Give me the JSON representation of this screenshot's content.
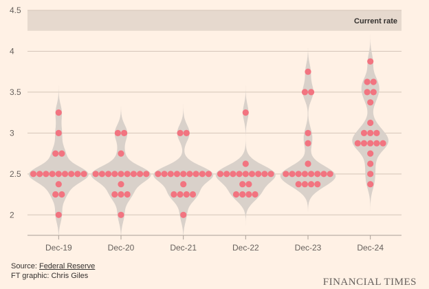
{
  "chart_data": {
    "type": "scatter",
    "subtype": "dot-plot-with-violin",
    "categories": [
      "Dec-19",
      "Dec-20",
      "Dec-21",
      "Dec-22",
      "Dec-23",
      "Dec-24"
    ],
    "ylim": [
      1.75,
      4.5
    ],
    "yticks": [
      "2",
      "2.5",
      "3",
      "3.5",
      "4",
      "4.5"
    ],
    "ytick_values": [
      2,
      2.5,
      3,
      3.5,
      4,
      4.5
    ],
    "band": {
      "from": 4.25,
      "to": 4.5,
      "label": "Current rate"
    },
    "dots": [
      [
        2.0,
        2.25,
        2.25,
        2.375,
        2.5,
        2.5,
        2.5,
        2.5,
        2.5,
        2.5,
        2.5,
        2.5,
        2.5,
        2.75,
        2.75,
        3.0,
        3.25
      ],
      [
        2.0,
        2.25,
        2.25,
        2.25,
        2.375,
        2.5,
        2.5,
        2.5,
        2.5,
        2.5,
        2.5,
        2.5,
        2.5,
        2.5,
        2.75,
        3.0,
        3.0
      ],
      [
        2.0,
        2.25,
        2.25,
        2.25,
        2.25,
        2.375,
        2.5,
        2.5,
        2.5,
        2.5,
        2.5,
        2.5,
        2.5,
        2.5,
        2.5,
        3.0,
        3.0
      ],
      [
        2.25,
        2.25,
        2.25,
        2.25,
        2.375,
        2.375,
        2.5,
        2.5,
        2.5,
        2.5,
        2.5,
        2.5,
        2.5,
        2.5,
        2.5,
        2.625,
        3.25
      ],
      [
        2.375,
        2.375,
        2.375,
        2.375,
        2.5,
        2.5,
        2.5,
        2.5,
        2.5,
        2.5,
        2.5,
        2.5,
        2.625,
        2.875,
        3.0,
        3.5,
        3.5,
        3.75
      ],
      [
        2.375,
        2.5,
        2.625,
        2.75,
        2.875,
        2.875,
        2.875,
        2.875,
        2.875,
        3.0,
        3.0,
        3.0,
        3.125,
        3.375,
        3.5,
        3.5,
        3.625,
        3.625,
        3.875
      ]
    ],
    "colors": {
      "dot": "#f27480",
      "violin": "#d9d1ca",
      "band": "#e6d9ce",
      "grid": "#d4c5b8",
      "background": "#fff1e5"
    }
  },
  "footer": {
    "source_prefix": "Source: ",
    "source_link": "Federal Reserve",
    "credit": "FT graphic: Chris Giles"
  },
  "brand": "FINANCIAL TIMES"
}
